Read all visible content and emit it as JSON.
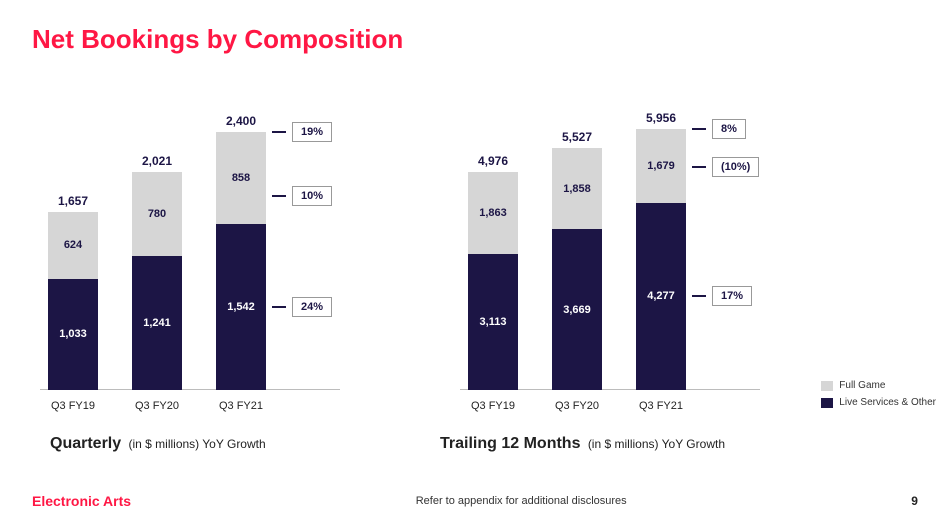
{
  "colors": {
    "accent": "#ff1744",
    "dark": "#1c1545",
    "light": "#d6d6d6",
    "bg": "#ffffff"
  },
  "title": "Net Bookings  by Composition",
  "legend": {
    "full_game": "Full Game",
    "live_services": "Live Services & Other"
  },
  "chart_scale": {
    "quarterly_max": 2600,
    "ttm_max": 6400
  },
  "quarterly": {
    "subtitle_bold": "Quarterly",
    "subtitle_rest": "(in $ millions) YoY Growth",
    "bars": [
      {
        "cat": "Q3 FY19",
        "total": "1,657",
        "top_val": 624,
        "top_label": "624",
        "bot_val": 1033,
        "bot_label": "1,033"
      },
      {
        "cat": "Q3 FY20",
        "total": "2,021",
        "top_val": 780,
        "top_label": "780",
        "bot_val": 1241,
        "bot_label": "1,241"
      },
      {
        "cat": "Q3 FY21",
        "total": "2,400",
        "top_val": 858,
        "top_label": "858",
        "bot_val": 1542,
        "bot_label": "1,542"
      }
    ],
    "callouts": [
      {
        "label": "19%",
        "at_value": 2400
      },
      {
        "label": "10%",
        "at_value": 1800
      },
      {
        "label": "24%",
        "at_value": 770
      }
    ]
  },
  "ttm": {
    "subtitle_bold": "Trailing 12 Months",
    "subtitle_rest": "(in $ millions) YoY Growth",
    "bars": [
      {
        "cat": "Q3 FY19",
        "total": "4,976",
        "top_val": 1863,
        "top_label": "1,863",
        "bot_val": 3113,
        "bot_label": "3,113"
      },
      {
        "cat": "Q3 FY20",
        "total": "5,527",
        "top_val": 1858,
        "top_label": "1,858",
        "bot_val": 3669,
        "bot_label": "3,669"
      },
      {
        "cat": "Q3 FY21",
        "total": "5,956",
        "top_val": 1679,
        "top_label": "1,679",
        "bot_val": 4277,
        "bot_label": "4,277"
      }
    ],
    "callouts": [
      {
        "label": "8%",
        "at_value": 5956
      },
      {
        "label": "(10%)",
        "at_value": 5100
      },
      {
        "label": "17%",
        "at_value": 2140
      }
    ]
  },
  "footer": {
    "brand": "Electronic Arts",
    "disclosure": "Refer to appendix for additional disclosures",
    "page": "9"
  }
}
